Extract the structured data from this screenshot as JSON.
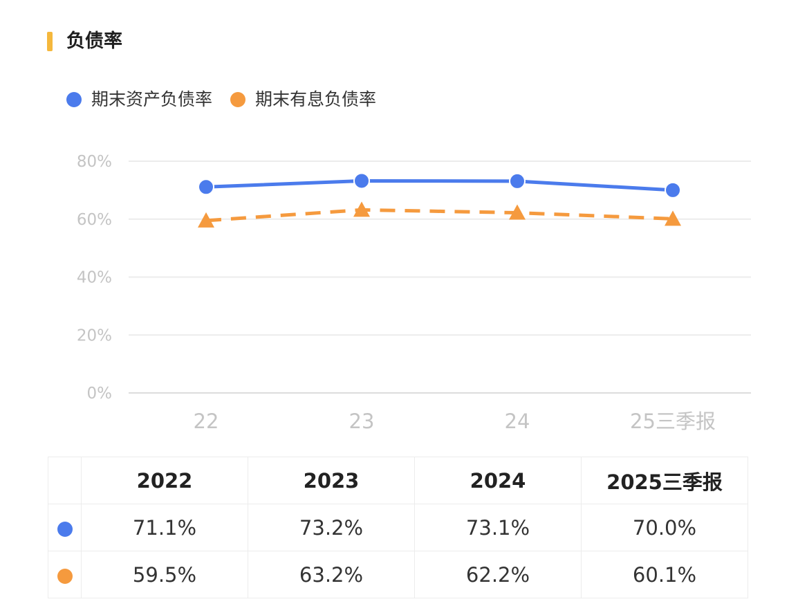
{
  "title": "负债率",
  "colors": {
    "series_blue": "#4b7bec",
    "series_orange": "#f59a3e",
    "title_accent": "#f5b83d"
  },
  "chart_data": {
    "type": "line",
    "categories": [
      "22",
      "23",
      "24",
      "25三季报"
    ],
    "series": [
      {
        "name": "期末资产负债率",
        "values": [
          71.1,
          73.2,
          73.1,
          70.0
        ],
        "color": "#4b7bec",
        "marker": "circle",
        "line_style": "solid"
      },
      {
        "name": "期末有息负债率",
        "values": [
          59.5,
          63.2,
          62.2,
          60.1
        ],
        "color": "#f59a3e",
        "marker": "triangle",
        "line_style": "dashed"
      }
    ],
    "yticks": [
      "0%",
      "20%",
      "40%",
      "60%",
      "80%"
    ],
    "ytick_values": [
      0,
      20,
      40,
      60,
      80
    ],
    "ylim": [
      0,
      80
    ],
    "grid": true,
    "legend_position": "top-left"
  },
  "table": {
    "headers": [
      "2022",
      "2023",
      "2024",
      "2025三季报"
    ],
    "rows": [
      {
        "color": "#4b7bec",
        "values": [
          "71.1%",
          "73.2%",
          "73.1%",
          "70.0%"
        ]
      },
      {
        "color": "#f59a3e",
        "values": [
          "59.5%",
          "63.2%",
          "62.2%",
          "60.1%"
        ]
      }
    ]
  }
}
